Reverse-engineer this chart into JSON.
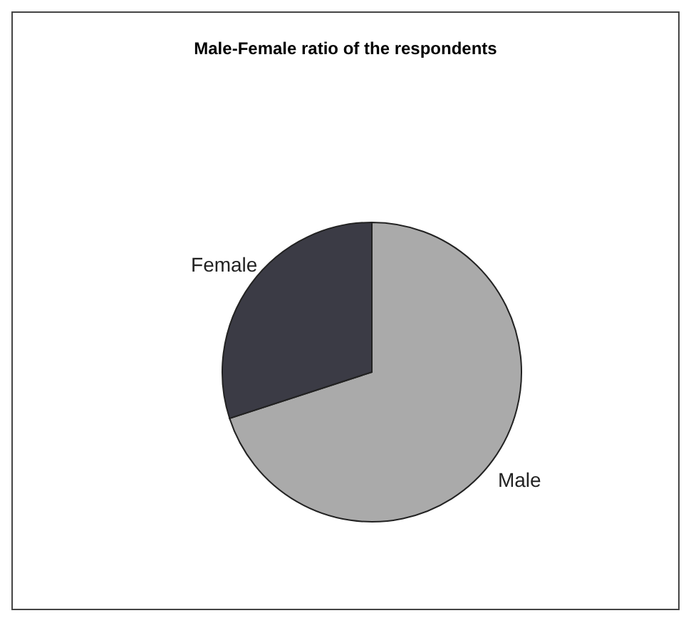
{
  "chart_data": {
    "type": "pie",
    "title": "Male-Female ratio of the respondents",
    "categories": [
      "Male",
      "Female"
    ],
    "values": [
      70,
      30
    ],
    "colors": [
      "#aaaaaa",
      "#3b3b45"
    ],
    "legend": false
  }
}
